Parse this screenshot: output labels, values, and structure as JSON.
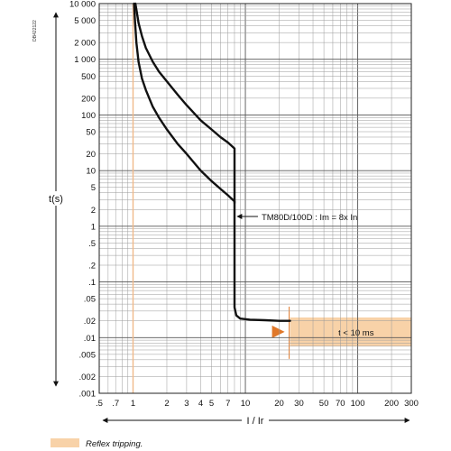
{
  "figure_ref": "DB422122",
  "chart_data": {
    "type": "line",
    "title": "",
    "xlabel": "I / Ir",
    "ylabel": "t(s)",
    "xscale": "log",
    "yscale": "log",
    "xlim": [
      0.5,
      300
    ],
    "ylim": [
      0.001,
      10000
    ],
    "grid": true,
    "x_ticks": [
      {
        "value": 0.5,
        "label": ".5"
      },
      {
        "value": 0.7,
        "label": ".7"
      },
      {
        "value": 1,
        "label": "1"
      },
      {
        "value": 2,
        "label": "2"
      },
      {
        "value": 3,
        "label": "3"
      },
      {
        "value": 4,
        "label": "4"
      },
      {
        "value": 5,
        "label": "5"
      },
      {
        "value": 7,
        "label": "7"
      },
      {
        "value": 10,
        "label": "10"
      },
      {
        "value": 20,
        "label": "20"
      },
      {
        "value": 30,
        "label": "30"
      },
      {
        "value": 50,
        "label": "50"
      },
      {
        "value": 70,
        "label": "70"
      },
      {
        "value": 100,
        "label": "100"
      },
      {
        "value": 200,
        "label": "200"
      },
      {
        "value": 300,
        "label": "300"
      }
    ],
    "y_ticks": [
      {
        "value": 10000,
        "label": "10 000"
      },
      {
        "value": 5000,
        "label": "5 000"
      },
      {
        "value": 2000,
        "label": "2 000"
      },
      {
        "value": 1000,
        "label": "1 000"
      },
      {
        "value": 500,
        "label": "500"
      },
      {
        "value": 200,
        "label": "200"
      },
      {
        "value": 100,
        "label": "100"
      },
      {
        "value": 50,
        "label": "50"
      },
      {
        "value": 20,
        "label": "20"
      },
      {
        "value": 10,
        "label": "10"
      },
      {
        "value": 5,
        "label": "5"
      },
      {
        "value": 2,
        "label": "2"
      },
      {
        "value": 1,
        "label": "1"
      },
      {
        "value": 0.5,
        "label": ".5"
      },
      {
        "value": 0.2,
        "label": ".2"
      },
      {
        "value": 0.1,
        "label": ".1"
      },
      {
        "value": 0.05,
        "label": ".05"
      },
      {
        "value": 0.02,
        "label": ".02"
      },
      {
        "value": 0.01,
        "label": ".01"
      },
      {
        "value": 0.005,
        "label": ".005"
      },
      {
        "value": 0.002,
        "label": ".002"
      },
      {
        "value": 0.001,
        "label": ".001"
      }
    ],
    "series": [
      {
        "color": "#111111",
        "x": [
          1.05,
          1.08,
          1.12,
          1.2,
          1.3,
          1.5,
          1.7,
          2,
          2.5,
          3,
          4,
          5,
          6,
          7,
          8,
          8
        ],
        "y": [
          10000,
          7000,
          4500,
          2600,
          1600,
          900,
          600,
          400,
          230,
          150,
          80,
          55,
          40,
          32,
          25,
          2.6
        ]
      },
      {
        "color": "#111111",
        "x": [
          1.02,
          1.04,
          1.07,
          1.12,
          1.2,
          1.3,
          1.5,
          1.7,
          2,
          2.5,
          3,
          4,
          5,
          6,
          7,
          8,
          8,
          8.3,
          9,
          11,
          15,
          20,
          25
        ],
        "y": [
          10000,
          5000,
          2000,
          900,
          450,
          280,
          140,
          90,
          55,
          30,
          20,
          10,
          6.5,
          4.7,
          3.6,
          2.8,
          0.035,
          0.025,
          0.022,
          0.021,
          0.0205,
          0.02,
          0.02
        ]
      }
    ],
    "reference_line": {
      "x": 1,
      "color": "#f0b98a"
    },
    "reflex_band": {
      "x_from": 25,
      "x_to": 300,
      "y_from": 0.007,
      "y_to": 0.023,
      "color": "#f8d2a8",
      "label": "t < 10 ms"
    },
    "annotations": [
      {
        "text": "TM80D/100D : Im = 8x In",
        "x": 8,
        "y": 1.5
      }
    ],
    "legend": [
      {
        "label": "Reflex tripping.",
        "color": "#f8d2a8"
      }
    ]
  }
}
